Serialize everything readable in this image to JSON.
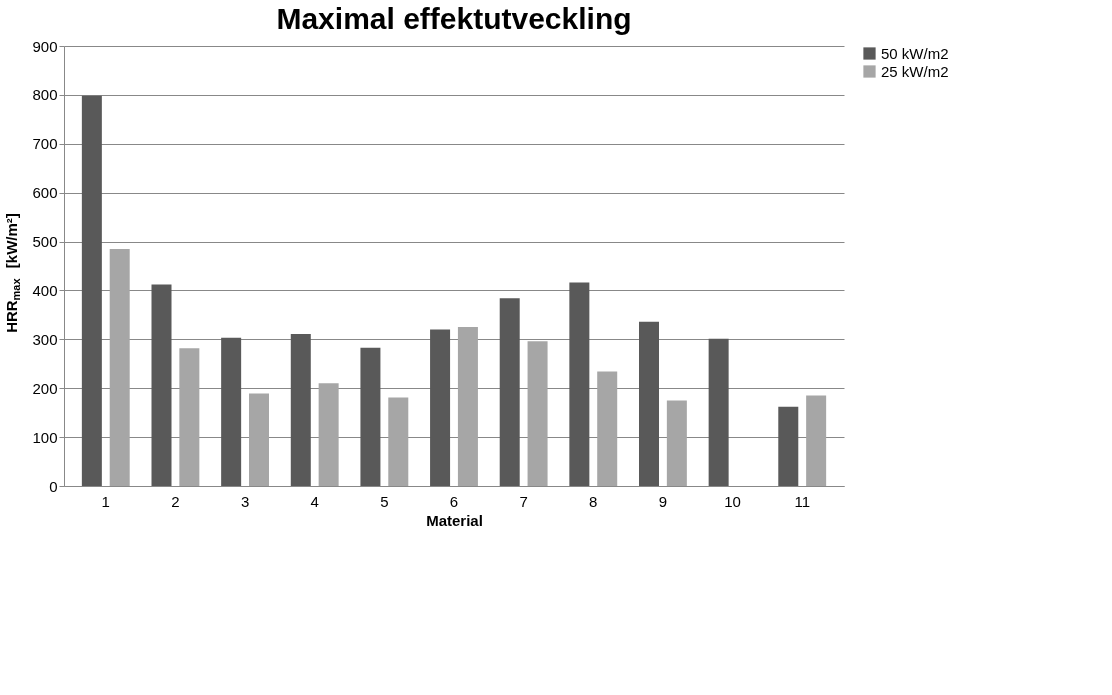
{
  "chart_data": {
    "type": "bar",
    "title": "Maximal effektutveckling",
    "xlabel": "Material",
    "ylabel": "HRR$_{max}$ [kW/m²]",
    "categories": [
      "1",
      "2",
      "3",
      "4",
      "5",
      "6",
      "7",
      "8",
      "9",
      "10",
      "11"
    ],
    "series": [
      {
        "name": "50 kW/m2",
        "color": "#595959",
        "values": [
          798,
          412,
          303,
          311,
          283,
          320,
          384,
          416,
          336,
          301,
          162
        ]
      },
      {
        "name": "25 kW/m2",
        "color": "#a6a6a6",
        "values": [
          485,
          282,
          189,
          210,
          181,
          325,
          296,
          234,
          175,
          null,
          185
        ]
      }
    ],
    "ylim": [
      0,
      900
    ],
    "yticks": [
      0,
      100,
      200,
      300,
      400,
      500,
      600,
      700,
      800,
      900
    ],
    "grid": "y",
    "legend": "right"
  }
}
